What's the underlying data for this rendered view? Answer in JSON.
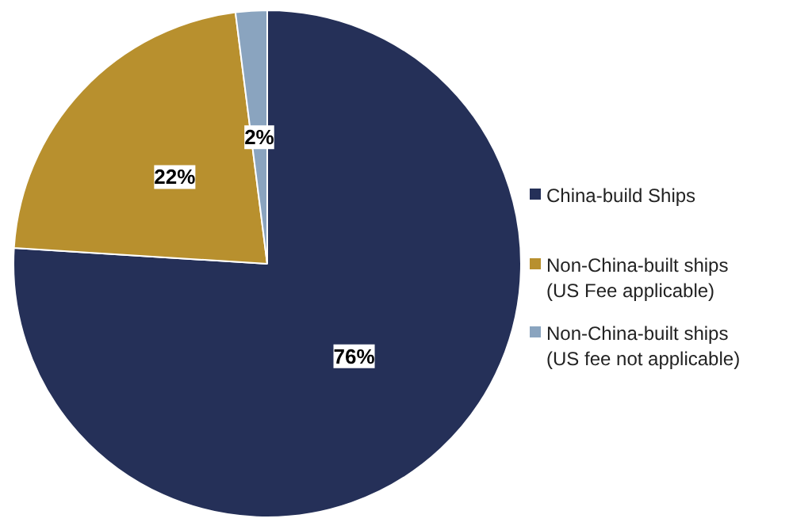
{
  "chart_data": {
    "type": "pie",
    "categories": [
      "China-build Ships",
      "Non-China-built ships\n(US Fee applicable)",
      "Non-China-built ships\n(US fee not applicable)"
    ],
    "values": [
      76,
      22,
      2
    ],
    "colors": [
      "#253058",
      "#b8902e",
      "#8aa4bf"
    ],
    "value_labels": [
      "76%",
      "22%",
      "2%"
    ],
    "legend": "right"
  }
}
